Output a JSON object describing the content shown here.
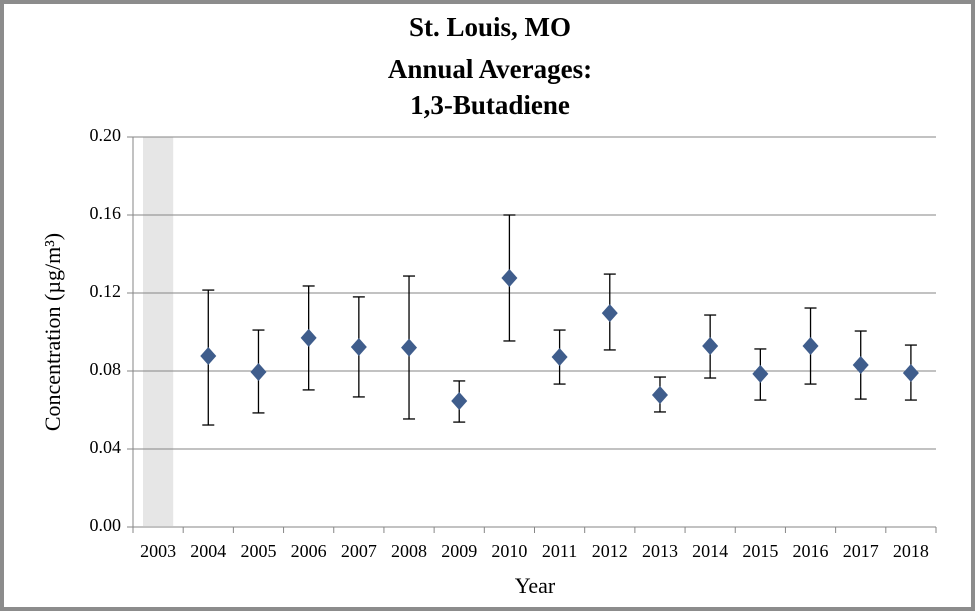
{
  "chart_data": {
    "type": "errorbar-scatter",
    "title": [
      "St. Louis, MO",
      "Annual Averages:",
      "1,3-Butadiene"
    ],
    "x_label": "Year",
    "y_label": "Concentration (µg/m³)",
    "categories": [
      "2003",
      "2004",
      "2005",
      "2006",
      "2007",
      "2008",
      "2009",
      "2010",
      "2011",
      "2012",
      "2013",
      "2014",
      "2015",
      "2016",
      "2017",
      "2018"
    ],
    "series": [
      {
        "color": "#3f5d8c",
        "values": [
          null,
          0.0877,
          0.0795,
          0.097,
          0.0923,
          0.092,
          0.0646,
          0.1277,
          0.0872,
          0.1097,
          0.0677,
          0.0928,
          0.0785,
          0.0928,
          0.0831,
          0.079
        ],
        "upper": [
          null,
          0.1215,
          0.101,
          0.1236,
          0.118,
          0.1287,
          0.0749,
          0.16,
          0.101,
          0.1297,
          0.0769,
          0.1087,
          0.0913,
          0.1123,
          0.1005,
          0.0933
        ],
        "lower": [
          null,
          0.0523,
          0.0585,
          0.0703,
          0.0667,
          0.0554,
          0.0538,
          0.0954,
          0.0733,
          0.0908,
          0.059,
          0.0764,
          0.0651,
          0.0733,
          0.0656,
          0.0651
        ]
      }
    ],
    "missing_color": "#e6e6e6",
    "ylim": [
      0,
      0.2
    ],
    "yticks": [
      {
        "value": 0,
        "label": "0.00"
      },
      {
        "value": 0.04,
        "label": "0.04"
      },
      {
        "value": 0.08,
        "label": "0.08"
      },
      {
        "value": 0.12,
        "label": "0.12"
      },
      {
        "value": 0.16,
        "label": "0.16"
      },
      {
        "value": 0.2,
        "label": "0.20"
      }
    ],
    "grid": true
  }
}
